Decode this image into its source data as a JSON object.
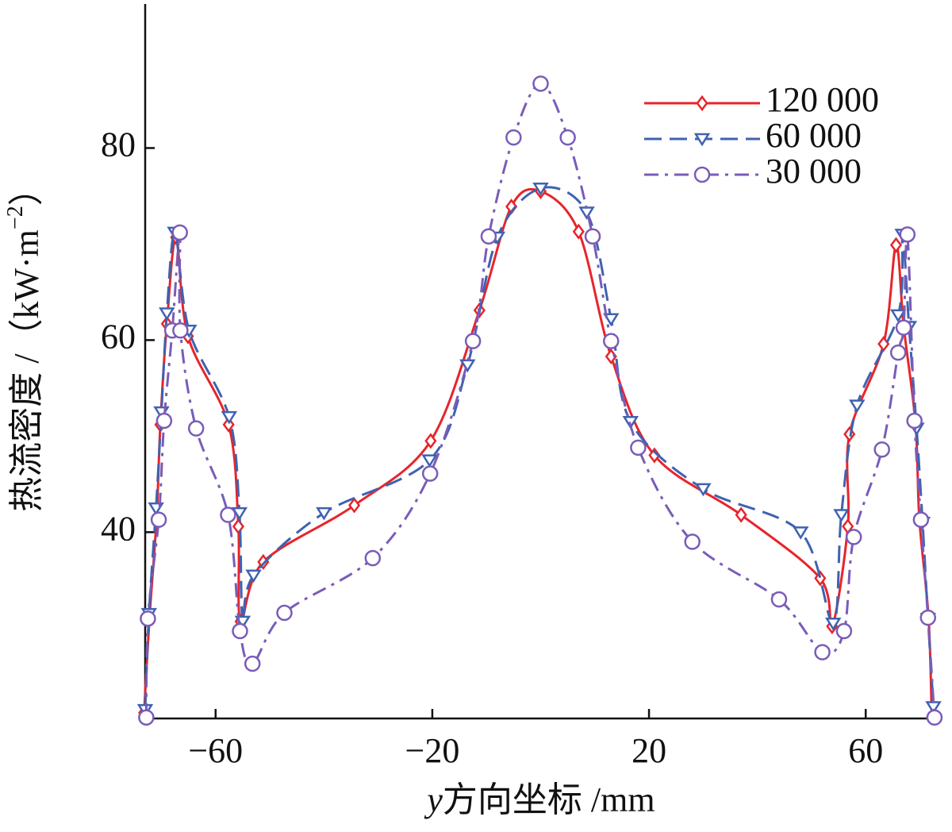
{
  "chart_data": {
    "type": "line",
    "y_label": "热流密度 /（kW·m",
    "y_label_sup": "−2",
    "y_label_end": "）",
    "x_label_var": "y",
    "x_label": "方向坐标 /mm",
    "xlim": [
      -73,
      73
    ],
    "ylim": [
      20.6,
      95
    ],
    "xticks": [
      {
        "value": -60,
        "label": "−60"
      },
      {
        "value": -20,
        "label": "−20"
      },
      20,
      60
    ],
    "yticks": [
      40,
      60,
      80
    ],
    "legend": "upper right",
    "series": [
      {
        "name": "120 000",
        "color": "#e8242b",
        "dash": "solid",
        "marker": "diamond",
        "x": [
          -73.2,
          -72.2,
          -70.9,
          -70.2,
          -69,
          -67.3,
          -65.1,
          -57.6,
          -55.8,
          -55.4,
          -51.2,
          -34.4,
          -20.3,
          -11.3,
          -5.4,
          0,
          7,
          13,
          21,
          37,
          51.6,
          53.8,
          56.7,
          57,
          63.3,
          65.6,
          67,
          69.2,
          69.9,
          71.6,
          72.2
        ],
        "values": [
          21.2,
          31.1,
          41.4,
          51.2,
          61.7,
          70.7,
          60.4,
          51.2,
          40.6,
          30.7,
          36.9,
          42.8,
          49.5,
          63.1,
          73.9,
          75.5,
          71.3,
          58.3,
          48,
          41.8,
          35.2,
          30.2,
          40.6,
          50.2,
          59.6,
          69.9,
          61.5,
          51.3,
          41.4,
          31.1,
          20.7
        ]
      },
      {
        "name": "60 000",
        "color": "#3f62b0",
        "dash": "dashed",
        "marker": "triangle",
        "x": [
          -73,
          -72.3,
          -71,
          -70,
          -69,
          -67.5,
          -64.9,
          -57.5,
          -55.6,
          -55,
          -53,
          -40,
          -20.5,
          -13.5,
          -8,
          0,
          8.5,
          13,
          16.6,
          30,
          48,
          54,
          55.5,
          58.4,
          66,
          66.8,
          68,
          69.4,
          70.5,
          71.5,
          72.5
        ],
        "values": [
          21.5,
          31.5,
          42.5,
          52.5,
          62.8,
          71.2,
          61,
          52,
          42,
          30.7,
          35.5,
          42,
          47.5,
          57.4,
          70.7,
          75.8,
          73.3,
          62.2,
          51.5,
          44.5,
          40,
          30.5,
          41.8,
          53.2,
          62.6,
          71,
          61.4,
          50.8,
          41,
          31,
          21.8
        ]
      },
      {
        "name": "30 000",
        "color": "#7a5cb8",
        "dash": "dashdot",
        "marker": "circle",
        "x": [
          -72.8,
          -72.5,
          -70.5,
          -69.5,
          -68,
          -66.6,
          -66.5,
          -63.6,
          -57.7,
          -55.5,
          -53.2,
          -47.3,
          -31,
          -20.4,
          -12.5,
          -9.6,
          -5,
          0,
          5,
          9.6,
          13,
          18,
          28,
          44,
          52,
          56,
          57.8,
          63,
          66,
          67,
          67.7,
          69,
          70.2,
          71.5,
          72.7
        ],
        "values": [
          20.7,
          31,
          41.3,
          51.6,
          61,
          71.2,
          61,
          50.8,
          41.8,
          29.7,
          26.3,
          31.6,
          37.3,
          46.1,
          59.9,
          70.8,
          81.1,
          86.7,
          81.1,
          70.8,
          59.9,
          48.8,
          39,
          33,
          27.5,
          29.7,
          39.5,
          48.6,
          58.7,
          61.3,
          71,
          51.6,
          41.3,
          31.1,
          20.7
        ]
      }
    ]
  }
}
